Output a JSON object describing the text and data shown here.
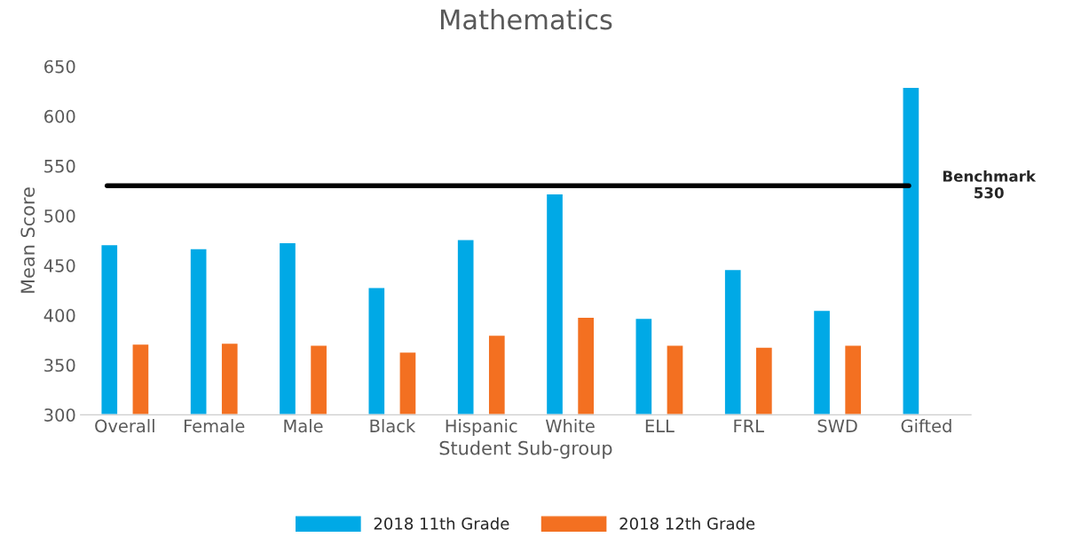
{
  "chart_data": {
    "type": "bar",
    "title": "Mathematics",
    "xlabel": "Student Sub-group",
    "ylabel": "Mean Score",
    "categories": [
      "Overall",
      "Female",
      "Male",
      "Black",
      "Hispanic",
      "White",
      "ELL",
      "FRL",
      "SWD",
      "Gifted"
    ],
    "series": [
      {
        "name": "2018 11th Grade",
        "color": "#00a9e6",
        "values": [
          471,
          467,
          473,
          428,
          476,
          522,
          397,
          446,
          405,
          629
        ]
      },
      {
        "name": "2018 12th Grade",
        "color": "#f37021",
        "values": [
          371,
          372,
          370,
          363,
          380,
          398,
          370,
          368,
          370,
          null
        ]
      }
    ],
    "ylim": [
      300,
      650
    ],
    "yticks": [
      300,
      350,
      400,
      450,
      500,
      550,
      600,
      650
    ],
    "ref_lines": [
      {
        "axis": "y",
        "value": 530,
        "label": "Benchmark\n530",
        "color": "#000000",
        "line_style": "solid"
      }
    ],
    "grid": false,
    "legend": "bottom"
  }
}
